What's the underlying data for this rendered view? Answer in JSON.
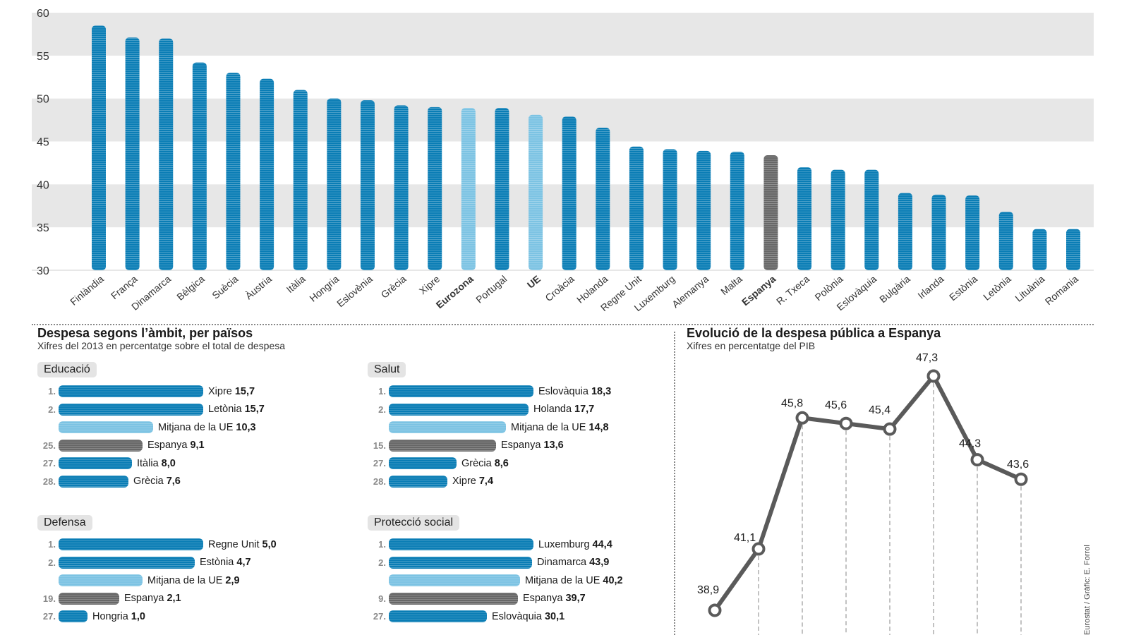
{
  "chart_data": [
    {
      "type": "bar",
      "categories": [
        "Finlàndia",
        "França",
        "Dinamarca",
        "Bèlgica",
        "Suècia",
        "Àustria",
        "Itàlia",
        "Hongria",
        "Eslovènia",
        "Grècia",
        "Xipre",
        "Eurozona",
        "Portugal",
        "UE",
        "Croàcia",
        "Holanda",
        "Regne Unit",
        "Luxemburg",
        "Alemanya",
        "Malta",
        "Espanya",
        "R. Txeca",
        "Polònia",
        "Eslovàquia",
        "Bulgària",
        "Irlanda",
        "Estònia",
        "Letònia",
        "Lituània",
        "Romania"
      ],
      "values": [
        58.5,
        57.1,
        57.0,
        54.2,
        53.0,
        52.3,
        51.0,
        50.0,
        49.8,
        49.2,
        49.0,
        48.9,
        48.9,
        48.1,
        47.9,
        46.6,
        44.4,
        44.1,
        43.9,
        43.8,
        43.4,
        42.0,
        41.7,
        41.7,
        39.0,
        38.8,
        38.7,
        36.8,
        34.8,
        34.8
      ],
      "highlight": {
        "Eurozona": "eu",
        "UE": "eu",
        "Espanya": "spain"
      },
      "yticks": [
        30,
        35,
        40,
        45,
        50,
        55,
        60
      ],
      "ylim": [
        30,
        60
      ],
      "grid": "alternating bands"
    },
    {
      "type": "line",
      "title": "Evolució de la despesa pública a Espanya",
      "subtitle": "Xifres en percentatge del PIB",
      "values": [
        38.9,
        41.1,
        45.8,
        45.6,
        45.4,
        47.3,
        44.3,
        43.6
      ],
      "value_labels": [
        "38,9",
        "41,1",
        "45,8",
        "45,6",
        "45,4",
        "47,3",
        "44,3",
        "43,6"
      ],
      "ylim": [
        38.9,
        47.3
      ]
    }
  ],
  "colors": {
    "country": "#0a7db5",
    "eu": "#7cc3e3",
    "spain": "#676767",
    "band": "#e7e7e7",
    "line": "#5a5a5a"
  },
  "left_section": {
    "title": "Despesa segons l’àmbit, per països",
    "subtitle": "Xifres del 2013 en percentatge sobre el total de despesa"
  },
  "categories": [
    {
      "name": "Educació",
      "rows": [
        {
          "rank": "1.",
          "country": "Xipre",
          "value": "15,7",
          "num": 15.7,
          "kind": "country"
        },
        {
          "rank": "2.",
          "country": "Letònia",
          "value": "15,7",
          "num": 15.7,
          "kind": "country"
        },
        {
          "rank": "",
          "country": "Mitjana de la UE",
          "value": "10,3",
          "num": 10.3,
          "kind": "eu"
        },
        {
          "rank": "25.",
          "country": "Espanya",
          "value": "9,1",
          "num": 9.1,
          "kind": "spain"
        },
        {
          "rank": "27.",
          "country": "Itàlia",
          "value": "8,0",
          "num": 8.0,
          "kind": "country"
        },
        {
          "rank": "28.",
          "country": "Grècia",
          "value": "7,6",
          "num": 7.6,
          "kind": "country"
        }
      ]
    },
    {
      "name": "Salut",
      "rows": [
        {
          "rank": "1.",
          "country": "Eslovàquia",
          "value": "18,3",
          "num": 18.3,
          "kind": "country"
        },
        {
          "rank": "2.",
          "country": "Holanda",
          "value": "17,7",
          "num": 17.7,
          "kind": "country"
        },
        {
          "rank": "",
          "country": "Mitjana de la UE",
          "value": "14,8",
          "num": 14.8,
          "kind": "eu"
        },
        {
          "rank": "15.",
          "country": "Espanya",
          "value": "13,6",
          "num": 13.6,
          "kind": "spain"
        },
        {
          "rank": "27.",
          "country": "Grècia",
          "value": "8,6",
          "num": 8.6,
          "kind": "country"
        },
        {
          "rank": "28.",
          "country": "Xipre",
          "value": "7,4",
          "num": 7.4,
          "kind": "country"
        }
      ]
    },
    {
      "name": "Defensa",
      "rows": [
        {
          "rank": "1.",
          "country": "Regne Unit",
          "value": "5,0",
          "num": 5.0,
          "kind": "country"
        },
        {
          "rank": "2.",
          "country": "Estònia",
          "value": "4,7",
          "num": 4.7,
          "kind": "country"
        },
        {
          "rank": "",
          "country": "Mitjana de la UE",
          "value": "2,9",
          "num": 2.9,
          "kind": "eu"
        },
        {
          "rank": "19.",
          "country": "Espanya",
          "value": "2,1",
          "num": 2.1,
          "kind": "spain"
        },
        {
          "rank": "27.",
          "country": "Hongria",
          "value": "1,0",
          "num": 1.0,
          "kind": "country"
        }
      ]
    },
    {
      "name": "Protecció social",
      "rows": [
        {
          "rank": "1.",
          "country": "Luxemburg",
          "value": "44,4",
          "num": 44.4,
          "kind": "country"
        },
        {
          "rank": "2.",
          "country": "Dinamarca",
          "value": "43,9",
          "num": 43.9,
          "kind": "country"
        },
        {
          "rank": "",
          "country": "Mitjana de la UE",
          "value": "40,2",
          "num": 40.2,
          "kind": "eu"
        },
        {
          "rank": "9.",
          "country": "Espanya",
          "value": "39,7",
          "num": 39.7,
          "kind": "spain"
        },
        {
          "rank": "27.",
          "country": "Eslovàquia",
          "value": "30,1",
          "num": 30.1,
          "kind": "country"
        }
      ]
    }
  ],
  "credit": "Eurostat / Gràfic: E. Forrol"
}
